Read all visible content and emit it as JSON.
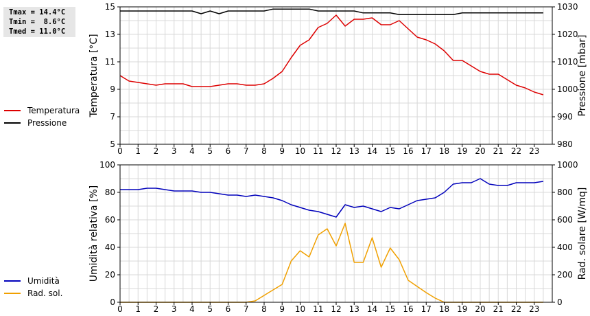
{
  "stats": {
    "tmax": "Tmax = 14.4°C",
    "tmin": "Tmin =  8.6°C",
    "tmed": "Tmed = 11.0°C"
  },
  "chart_data": [
    {
      "type": "line",
      "xlim": [
        0,
        24
      ],
      "x_ticks": [
        "0",
        "1",
        "2",
        "3",
        "4",
        "5",
        "6",
        "7",
        "8",
        "9",
        "10",
        "11",
        "12",
        "13",
        "14",
        "15",
        "16",
        "17",
        "18",
        "19",
        "20",
        "21",
        "22",
        "23"
      ],
      "grid": true,
      "ylabel_left": "Temperatura [°C]",
      "ylabel_right": "Pressione [mbar]",
      "ylim_left": [
        5,
        15
      ],
      "ylim_right": [
        980,
        1030
      ],
      "yticks_left": [
        "5",
        "7",
        "9",
        "11",
        "13",
        "15"
      ],
      "yticks_right": [
        "980",
        "990",
        "1000",
        "1010",
        "1020",
        "1030"
      ],
      "series": [
        {
          "name": "Temperatura",
          "axis": "left",
          "color": "#dd0000",
          "x": [
            0,
            0.5,
            1,
            1.5,
            2,
            2.5,
            3,
            3.5,
            4,
            4.5,
            5,
            5.5,
            6,
            6.5,
            7,
            7.5,
            8,
            8.5,
            9,
            9.5,
            10,
            10.5,
            11,
            11.5,
            12,
            12.5,
            13,
            13.5,
            14,
            14.5,
            15,
            15.5,
            16,
            16.5,
            17,
            17.5,
            18,
            18.5,
            19,
            19.5,
            20,
            20.5,
            21,
            21.5,
            22,
            22.5,
            23,
            23.5
          ],
          "values": [
            10.0,
            9.6,
            9.5,
            9.4,
            9.3,
            9.4,
            9.4,
            9.4,
            9.2,
            9.2,
            9.2,
            9.3,
            9.4,
            9.4,
            9.3,
            9.3,
            9.4,
            9.8,
            10.3,
            11.3,
            12.2,
            12.6,
            13.5,
            13.8,
            14.4,
            13.6,
            14.1,
            14.1,
            14.2,
            13.7,
            13.7,
            14.0,
            13.4,
            12.8,
            12.6,
            12.3,
            11.8,
            11.1,
            11.1,
            10.7,
            10.3,
            10.1,
            10.1,
            9.7,
            9.3,
            9.1,
            8.8,
            8.6
          ]
        },
        {
          "name": "Pressione",
          "axis": "right",
          "color": "#000000",
          "x": [
            0,
            0.5,
            1,
            1.5,
            2,
            2.5,
            3,
            3.5,
            4,
            4.5,
            5,
            5.5,
            6,
            6.5,
            7,
            7.5,
            8,
            8.5,
            9,
            9.5,
            10,
            10.5,
            11,
            11.5,
            12,
            12.5,
            13,
            13.5,
            14,
            14.5,
            15,
            15.5,
            16,
            16.5,
            17,
            17.5,
            18,
            18.5,
            19,
            19.5,
            20,
            20.5,
            21,
            21.5,
            22,
            22.5,
            23,
            23.5
          ],
          "values": [
            1028.5,
            1028.5,
            1028.5,
            1028.5,
            1028.5,
            1028.5,
            1028.5,
            1028.5,
            1028.5,
            1027.5,
            1028.5,
            1027.5,
            1028.5,
            1028.5,
            1028.5,
            1028.5,
            1028.5,
            1029.2,
            1029.2,
            1029.2,
            1029.2,
            1029.2,
            1028.5,
            1028.5,
            1028.5,
            1028.5,
            1028.5,
            1027.8,
            1027.8,
            1027.8,
            1027.8,
            1027.2,
            1027.2,
            1027.2,
            1027.2,
            1027.2,
            1027.2,
            1027.2,
            1027.8,
            1027.8,
            1027.8,
            1027.8,
            1027.8,
            1027.8,
            1027.8,
            1027.8,
            1027.8,
            1027.8
          ]
        }
      ]
    },
    {
      "type": "line",
      "xlim": [
        0,
        24
      ],
      "x_ticks": [
        "0",
        "1",
        "2",
        "3",
        "4",
        "5",
        "6",
        "7",
        "8",
        "9",
        "10",
        "11",
        "12",
        "13",
        "14",
        "15",
        "16",
        "17",
        "18",
        "19",
        "20",
        "21",
        "22",
        "23"
      ],
      "grid": true,
      "ylabel_left": "Umidità relativa [%]",
      "ylabel_right": "Rad. solare [W/mq]",
      "ylim_left": [
        0,
        100
      ],
      "ylim_right": [
        0,
        1000
      ],
      "yticks_left": [
        "0",
        "20",
        "40",
        "60",
        "80",
        "100"
      ],
      "yticks_right": [
        "0",
        "200",
        "400",
        "600",
        "800",
        "1000"
      ],
      "series": [
        {
          "name": "Umidità",
          "axis": "left",
          "color": "#0000bb",
          "x": [
            0,
            0.5,
            1,
            1.5,
            2,
            2.5,
            3,
            3.5,
            4,
            4.5,
            5,
            5.5,
            6,
            6.5,
            7,
            7.5,
            8,
            8.5,
            9,
            9.5,
            10,
            10.5,
            11,
            11.5,
            12,
            12.5,
            13,
            13.5,
            14,
            14.5,
            15,
            15.5,
            16,
            16.5,
            17,
            17.5,
            18,
            18.5,
            19,
            19.5,
            20,
            20.5,
            21,
            21.5,
            22,
            22.5,
            23,
            23.5
          ],
          "values": [
            82,
            82,
            82,
            83,
            83,
            82,
            81,
            81,
            81,
            80,
            80,
            79,
            78,
            78,
            77,
            78,
            77,
            76,
            74,
            71,
            69,
            67,
            66,
            64,
            62,
            71,
            69,
            70,
            68,
            66,
            69,
            68,
            71,
            74,
            75,
            76,
            80,
            86,
            87,
            87,
            90,
            86,
            85,
            85,
            87,
            87,
            87,
            88
          ]
        },
        {
          "name": "Rad. sol.",
          "axis": "right",
          "color": "#f0a000",
          "x": [
            0,
            0.5,
            1,
            1.5,
            2,
            2.5,
            3,
            3.5,
            4,
            4.5,
            5,
            5.5,
            6,
            6.5,
            7,
            7.5,
            8,
            8.5,
            9,
            9.5,
            10,
            10.5,
            11,
            11.5,
            12,
            12.5,
            13,
            13.5,
            14,
            14.5,
            15,
            15.5,
            16,
            16.5,
            17,
            17.5,
            18,
            18.5,
            19,
            19.5,
            20,
            20.5,
            21,
            21.5,
            22,
            22.5,
            23,
            23.5
          ],
          "values": [
            0,
            0,
            0,
            0,
            0,
            0,
            0,
            0,
            0,
            0,
            0,
            0,
            0,
            0,
            0,
            10,
            50,
            90,
            130,
            300,
            375,
            330,
            490,
            535,
            410,
            575,
            290,
            290,
            470,
            255,
            395,
            310,
            160,
            115,
            70,
            30,
            0,
            0,
            0,
            0,
            0,
            0,
            0,
            0,
            0,
            0,
            0,
            0
          ]
        }
      ]
    }
  ]
}
